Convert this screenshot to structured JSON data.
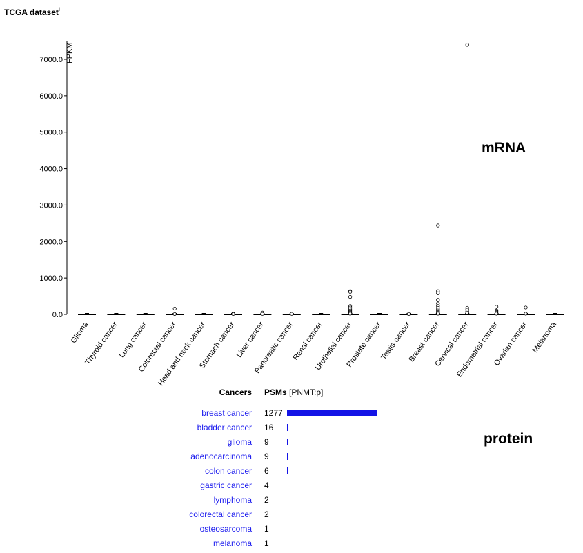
{
  "page": {
    "title": "TCGA dataset",
    "info_mark": "i",
    "mrna_label": "mRNA",
    "protein_label": "protein"
  },
  "chart_data": [
    {
      "type": "box",
      "ylabel": "FPKM",
      "ylim": [
        0,
        7500
      ],
      "yticks": [
        0,
        1000,
        2000,
        3000,
        4000,
        5000,
        6000,
        7000
      ],
      "ytick_labels": [
        "0.0",
        "1000.0",
        "2000.0",
        "3000.0",
        "4000.0",
        "5000.0",
        "6000.0",
        "7000.0"
      ],
      "grid": false,
      "categories": [
        "Glioma",
        "Thyroid cancer",
        "Lung cancer",
        "Colorectal cancer",
        "Head and neck cancer",
        "Stomach cancer",
        "Liver cancer",
        "Pancreatic cancer",
        "Renal cancer",
        "Urothelial cancer",
        "Prostate cancer",
        "Testis cancer",
        "Breast cancer",
        "Cervical cancer",
        "Endometrial cancer",
        "Ovarian cancer",
        "Melanoma"
      ],
      "medians": [
        0,
        0,
        0,
        0,
        0,
        0,
        0,
        0,
        0,
        0,
        0,
        0,
        0,
        0,
        0,
        0,
        0
      ],
      "outliers": [
        [],
        [],
        [],
        [
          160,
          10
        ],
        [],
        [
          20,
          10
        ],
        [
          50,
          15
        ],
        [
          15
        ],
        [],
        [
          640,
          620,
          480,
          230,
          190,
          150,
          110,
          80,
          60,
          40,
          20
        ],
        [],
        [
          10
        ],
        [
          2440,
          640,
          580,
          400,
          300,
          230,
          180,
          140,
          110,
          80,
          60,
          40,
          20
        ],
        [
          7400,
          180,
          130,
          80,
          40
        ],
        [
          210,
          110,
          90,
          70,
          50,
          30,
          20
        ],
        [
          190,
          20
        ],
        []
      ]
    },
    {
      "type": "bar",
      "orientation": "horizontal",
      "column_headers": {
        "cancers": "Cancers",
        "psms": "PSMs",
        "gene": "[PNMT:p]"
      },
      "categories": [
        "breast cancer",
        "bladder cancer",
        "glioma",
        "adenocarcinoma",
        "colon cancer",
        "gastric cancer",
        "lymphoma",
        "colorectal cancer",
        "osteosarcoma",
        "melanoma"
      ],
      "values": [
        1277,
        16,
        9,
        9,
        6,
        4,
        2,
        2,
        1,
        1
      ],
      "colors": {
        "bar": "#1414e6",
        "link": "#1a1aee"
      }
    }
  ]
}
